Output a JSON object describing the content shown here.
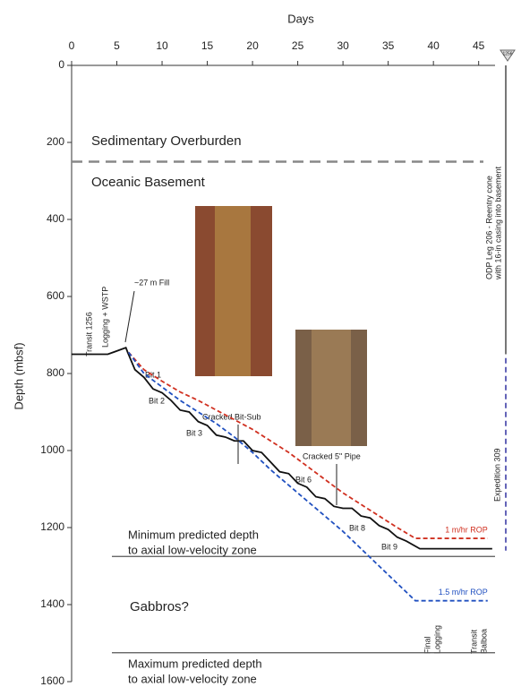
{
  "chart_data": {
    "type": "line",
    "xlabel": "Days",
    "ylabel": "Depth (mbsf)",
    "xlim": [
      0,
      48
    ],
    "ylim": [
      0,
      1600
    ],
    "xticks": [
      0,
      5,
      10,
      15,
      20,
      25,
      30,
      35,
      40,
      45
    ],
    "yticks": [
      0,
      200,
      400,
      600,
      800,
      1000,
      1200,
      1400,
      1600
    ],
    "y_inverted": true,
    "series": [
      {
        "color": "#111111",
        "dash": false,
        "x": [
          0,
          4,
          6,
          6.2,
          7,
          8,
          9,
          10,
          11,
          12,
          13,
          14,
          15,
          16,
          17,
          18,
          19,
          20,
          21,
          22,
          23,
          24,
          25,
          26,
          27,
          28,
          29,
          30,
          31,
          32,
          33,
          34,
          35,
          36,
          37,
          38.5,
          46.5
        ],
        "values": [
          750,
          750,
          733,
          745,
          790,
          810,
          840,
          850,
          870,
          895,
          900,
          925,
          935,
          960,
          965,
          975,
          975,
          1000,
          1005,
          1030,
          1055,
          1060,
          1085,
          1095,
          1120,
          1125,
          1145,
          1150,
          1150,
          1170,
          1175,
          1195,
          1205,
          1225,
          1235,
          1255,
          1255
        ]
      },
      {
        "name": "1 m/hr ROP",
        "color": "#d03020",
        "dash": true,
        "x": [
          6.3,
          8,
          10,
          12,
          14,
          16,
          18,
          20,
          22,
          24,
          26,
          28,
          30,
          32,
          34,
          36,
          38,
          46
        ],
        "values": [
          745,
          790,
          820,
          848,
          870,
          895,
          920,
          945,
          975,
          1005,
          1040,
          1075,
          1110,
          1140,
          1170,
          1200,
          1228,
          1228
        ]
      },
      {
        "name": "1.5 m/hr ROP",
        "color": "#2050c0",
        "dash": true,
        "x": [
          6.3,
          8,
          10,
          12,
          14,
          16,
          18,
          20,
          22,
          24,
          26,
          28,
          30,
          32,
          34,
          36,
          38,
          46
        ],
        "values": [
          745,
          800,
          835,
          870,
          900,
          930,
          965,
          1005,
          1050,
          1090,
          1130,
          1170,
          1210,
          1255,
          1300,
          1345,
          1390,
          1390
        ]
      }
    ],
    "reference_lines": [
      {
        "value": 250,
        "color": "#888888",
        "dash": true
      },
      {
        "value": 1275,
        "color": "#555555",
        "dash": false
      },
      {
        "value": 1525,
        "color": "#555555",
        "dash": false
      }
    ],
    "well_lines": [
      {
        "x": 48,
        "from": 0,
        "to": 750,
        "color": "#777777",
        "dash": false
      },
      {
        "x": 48,
        "from": 760,
        "to": 1260,
        "color": "#3030a0",
        "dash": true
      }
    ],
    "annotations": {
      "sediment": "Sedimentary Overburden",
      "basement": "Oceanic Basement",
      "transit": "Transit 1256",
      "logging": "Logging + WSTP",
      "fill": "~27 m Fill",
      "bit1": "Bit 1",
      "bit2": "Bit 2",
      "bit3": "Bit 3",
      "bit6": "Bit 6",
      "bit8": "Bit 8",
      "bit9": "Bit 9",
      "bitsub": "Cracked Bit-Sub",
      "pipe": "Cracked 5\" Pipe",
      "min_zone": [
        "Minimum predicted depth",
        "to axial low-velocity zone"
      ],
      "gabbros": "Gabbros?",
      "max_zone": [
        "Maximum predicted depth",
        "to axial low-velocity zone"
      ],
      "final_logging": [
        "Final",
        "Logging"
      ],
      "transit_balboa": [
        "Transit",
        "Balboa"
      ],
      "odp": [
        "ODP Leg 206 - Reentry cone",
        "with 16-in casing into basement"
      ],
      "expedition": "Expedition 309",
      "site": "1256"
    }
  }
}
